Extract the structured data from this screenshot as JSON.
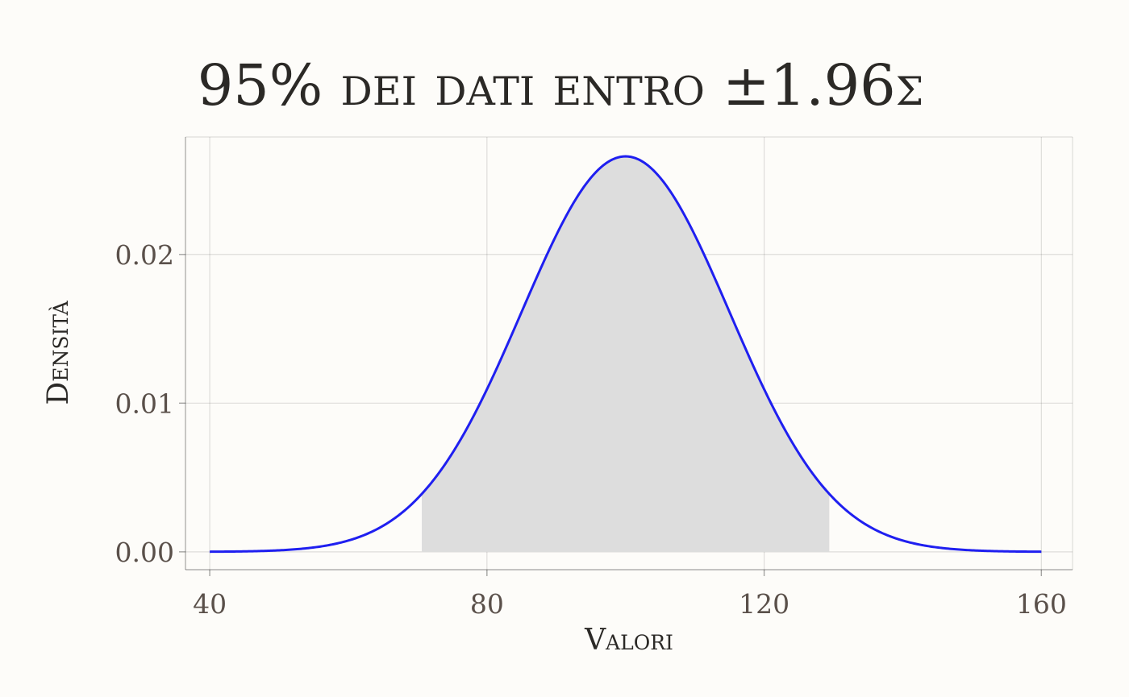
{
  "chart_data": {
    "type": "area",
    "title": "95% dei dati entro ±1.96σ",
    "xlabel": "Valori",
    "ylabel": "Densità",
    "xlim": [
      36.5,
      164.5
    ],
    "ylim": [
      -0.0012,
      0.0279
    ],
    "x_ticks": [
      40,
      80,
      120,
      160
    ],
    "x_tick_labels": [
      "40",
      "80",
      "120",
      "160"
    ],
    "y_ticks": [
      0,
      0.01,
      0.02
    ],
    "y_tick_labels": [
      "0.00",
      "0.01",
      "0.02"
    ],
    "grid": true,
    "distribution": {
      "name": "normal",
      "mean": 100,
      "sd": 15,
      "x_range": [
        40,
        160
      ]
    },
    "shaded_region": {
      "from": 70.6,
      "to": 129.4,
      "color": "#dddddd"
    },
    "line_color": "#1f1ff0"
  }
}
